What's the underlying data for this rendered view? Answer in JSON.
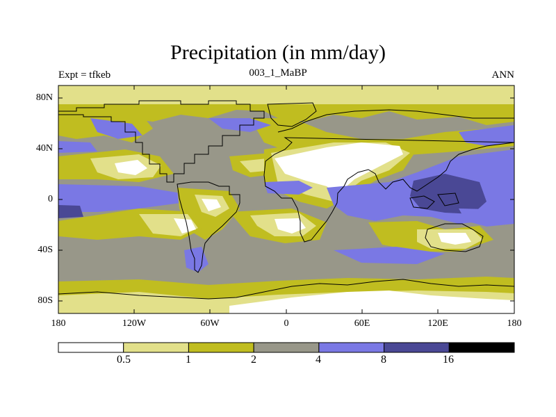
{
  "title": "Precipitation (in mm/day)",
  "subtitle_left": "Expt = tfkeb",
  "subtitle_center": "003_1_MaBP",
  "subtitle_right": "ANN",
  "y_ticks": [
    "80N",
    "40N",
    "0",
    "40S",
    "80S"
  ],
  "x_ticks": [
    "180",
    "120W",
    "60W",
    "0",
    "60E",
    "120E",
    "180"
  ],
  "colorbar": {
    "labels": [
      "0.5",
      "1",
      "2",
      "4",
      "8",
      "16"
    ],
    "colors": [
      "#ffffff",
      "#e2e08a",
      "#c0bd20",
      "#989789",
      "#7a78e4",
      "#4a4895",
      "#000000"
    ]
  },
  "colors": {
    "white": "#ffffff",
    "light_yellow": "#e2e08a",
    "olive": "#c0bd20",
    "gray": "#989789",
    "light_blue": "#7a78e4",
    "dark_blue": "#4a4895",
    "coast": "#000000"
  }
}
